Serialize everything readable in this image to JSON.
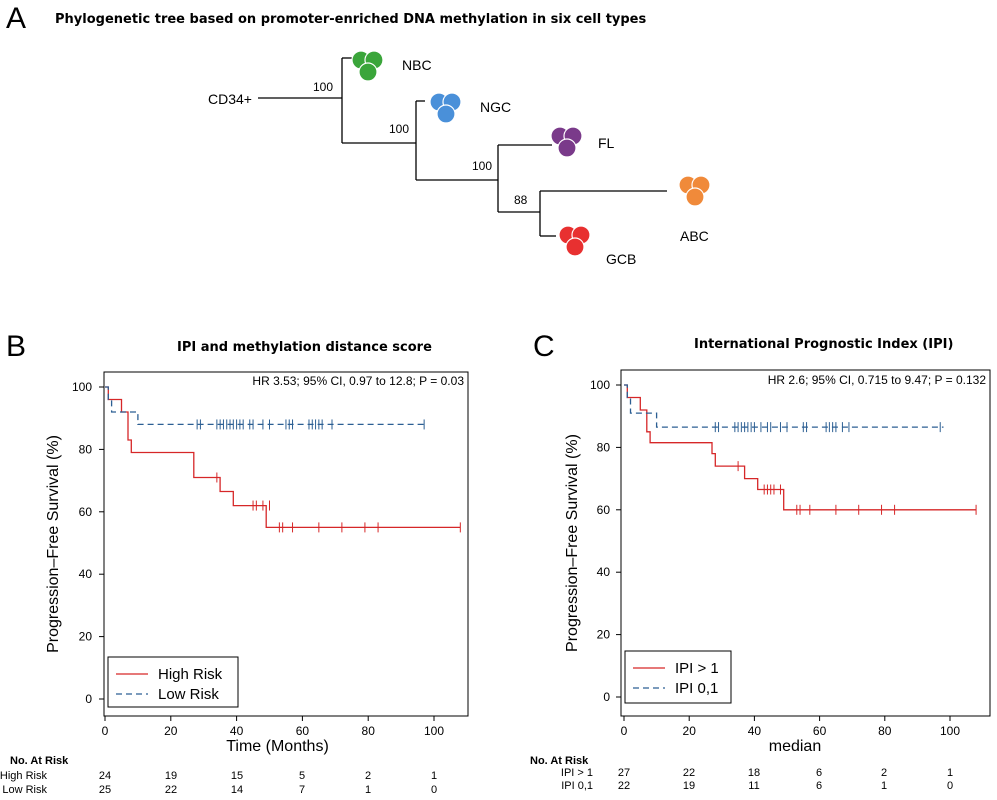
{
  "figure": {
    "panel_labels": [
      "A",
      "B",
      "C"
    ]
  },
  "tree": {
    "title": "Phylogenetic tree based on promoter-enriched DNA methylation in six cell types",
    "root_label": "CD34+",
    "nodes": [
      {
        "label": "NBC",
        "color": "#3aa53a"
      },
      {
        "label": "NGC",
        "color": "#4a90d9"
      },
      {
        "label": "FL",
        "color": "#7a3a8a"
      },
      {
        "label": "ABC",
        "color": "#f08a3a"
      },
      {
        "label": "GCB",
        "color": "#e83030"
      }
    ],
    "bootstrap": [
      "100",
      "100",
      "100",
      "88"
    ]
  },
  "chart_data": [
    {
      "type": "line",
      "title": "IPI and methylation distance score",
      "annotation": "HR 3.53; 95% CI, 0.97 to 12.8; P = 0.03",
      "xlabel": "Time (Months)",
      "ylabel": "Progression–Free Survival (%)",
      "xlim": [
        0,
        110
      ],
      "ylim": [
        0,
        100
      ],
      "xticks": [
        0,
        20,
        40,
        60,
        80,
        100
      ],
      "yticks": [
        0,
        20,
        40,
        60,
        80,
        100
      ],
      "legend": "bottom-left",
      "series": [
        {
          "name": "High Risk",
          "color": "#d62728",
          "dash": false,
          "steps": [
            [
              0,
              100
            ],
            [
              1,
              100
            ],
            [
              1,
              96
            ],
            [
              5,
              96
            ],
            [
              5,
              92
            ],
            [
              7,
              92
            ],
            [
              7,
              83
            ],
            [
              8,
              83
            ],
            [
              8,
              79
            ],
            [
              27,
              79
            ],
            [
              27,
              71
            ],
            [
              35,
              71
            ],
            [
              35,
              66.5
            ],
            [
              39,
              66.5
            ],
            [
              39,
              62
            ],
            [
              49,
              62
            ],
            [
              49,
              55
            ],
            [
              108,
              55
            ]
          ],
          "censors": [
            [
              34,
              71
            ],
            [
              45,
              62
            ],
            [
              46,
              62
            ],
            [
              48,
              62
            ],
            [
              50,
              62
            ],
            [
              53,
              55
            ],
            [
              54,
              55
            ],
            [
              57,
              55
            ],
            [
              65,
              55
            ],
            [
              72,
              55
            ],
            [
              79,
              55
            ],
            [
              83,
              55
            ],
            [
              108,
              55
            ]
          ]
        },
        {
          "name": "Low Risk",
          "color": "#2c5f93",
          "dash": true,
          "steps": [
            [
              0,
              100
            ],
            [
              1,
              100
            ],
            [
              1,
              96
            ],
            [
              2,
              96
            ],
            [
              2,
              92
            ],
            [
              10,
              92
            ],
            [
              10,
              88
            ],
            [
              98,
              88
            ]
          ],
          "censors": [
            [
              28,
              88
            ],
            [
              29,
              88
            ],
            [
              34,
              88
            ],
            [
              35,
              88
            ],
            [
              36,
              88
            ],
            [
              37,
              88
            ],
            [
              38,
              88
            ],
            [
              39,
              88
            ],
            [
              40,
              88
            ],
            [
              41,
              88
            ],
            [
              42,
              88
            ],
            [
              44,
              88
            ],
            [
              45,
              88
            ],
            [
              48,
              88
            ],
            [
              50,
              88
            ],
            [
              55,
              88
            ],
            [
              56,
              88
            ],
            [
              57,
              88
            ],
            [
              62,
              88
            ],
            [
              63,
              88
            ],
            [
              64,
              88
            ],
            [
              65,
              88
            ],
            [
              66,
              88
            ],
            [
              69,
              88
            ],
            [
              97,
              88
            ]
          ]
        }
      ],
      "at_risk": {
        "header": "No. At Risk",
        "times": [
          0,
          20,
          40,
          60,
          80,
          100
        ],
        "rows": [
          {
            "label": "High Risk",
            "values": [
              "24",
              "19",
              "15",
              "5",
              "2",
              "1"
            ]
          },
          {
            "label": "Low Risk",
            "values": [
              "25",
              "22",
              "14",
              "7",
              "1",
              "0"
            ]
          }
        ]
      }
    },
    {
      "type": "line",
      "title": "International Prognostic Index (IPI)",
      "annotation": "HR 2.6; 95% CI, 0.715 to 9.47; P = 0.132",
      "xlabel": "median",
      "ylabel": "Progression–Free Survival (%)",
      "xlim": [
        0,
        110
      ],
      "ylim": [
        0,
        100
      ],
      "xticks": [
        0,
        20,
        40,
        60,
        80,
        100
      ],
      "yticks": [
        0,
        20,
        40,
        60,
        80,
        100
      ],
      "legend": "bottom-left",
      "series": [
        {
          "name": "IPI > 1",
          "color": "#d62728",
          "dash": false,
          "steps": [
            [
              0,
              100
            ],
            [
              1,
              100
            ],
            [
              1,
              96
            ],
            [
              5,
              96
            ],
            [
              5,
              92
            ],
            [
              7,
              92
            ],
            [
              7,
              85
            ],
            [
              8,
              85
            ],
            [
              8,
              81.5
            ],
            [
              27,
              81.5
            ],
            [
              27,
              78
            ],
            [
              28,
              78
            ],
            [
              28,
              74
            ],
            [
              37,
              74
            ],
            [
              37,
              70
            ],
            [
              41,
              70
            ],
            [
              41,
              66.5
            ],
            [
              49,
              66.5
            ],
            [
              49,
              60
            ],
            [
              108,
              60
            ]
          ],
          "censors": [
            [
              35,
              74
            ],
            [
              43,
              66.5
            ],
            [
              44,
              66.5
            ],
            [
              45,
              66.5
            ],
            [
              46,
              66.5
            ],
            [
              48,
              66.5
            ],
            [
              53,
              60
            ],
            [
              54,
              60
            ],
            [
              57,
              60
            ],
            [
              65,
              60
            ],
            [
              72,
              60
            ],
            [
              79,
              60
            ],
            [
              83,
              60
            ],
            [
              108,
              60
            ]
          ]
        },
        {
          "name": "IPI 0,1",
          "color": "#2c5f93",
          "dash": true,
          "steps": [
            [
              0,
              100
            ],
            [
              1,
              100
            ],
            [
              1,
              96
            ],
            [
              2,
              96
            ],
            [
              2,
              91
            ],
            [
              10,
              91
            ],
            [
              10,
              86.5
            ],
            [
              98,
              86.5
            ]
          ],
          "censors": [
            [
              28,
              86.5
            ],
            [
              29,
              86.5
            ],
            [
              34,
              86.5
            ],
            [
              35,
              86.5
            ],
            [
              36,
              86.5
            ],
            [
              37,
              86.5
            ],
            [
              38,
              86.5
            ],
            [
              39,
              86.5
            ],
            [
              40,
              86.5
            ],
            [
              42,
              86.5
            ],
            [
              44,
              86.5
            ],
            [
              45,
              86.5
            ],
            [
              48,
              86.5
            ],
            [
              50,
              86.5
            ],
            [
              55,
              86.5
            ],
            [
              56,
              86.5
            ],
            [
              62,
              86.5
            ],
            [
              63,
              86.5
            ],
            [
              64,
              86.5
            ],
            [
              65,
              86.5
            ],
            [
              67,
              86.5
            ],
            [
              69,
              86.5
            ],
            [
              97,
              86.5
            ]
          ]
        }
      ],
      "at_risk": {
        "header": "No. At Risk",
        "times": [
          0,
          20,
          40,
          60,
          80,
          100
        ],
        "rows": [
          {
            "label": "IPI > 1",
            "values": [
              "27",
              "22",
              "18",
              "6",
              "2",
              "1"
            ]
          },
          {
            "label": "IPI 0,1",
            "values": [
              "22",
              "19",
              "11",
              "6",
              "1",
              "0"
            ]
          }
        ]
      }
    }
  ]
}
